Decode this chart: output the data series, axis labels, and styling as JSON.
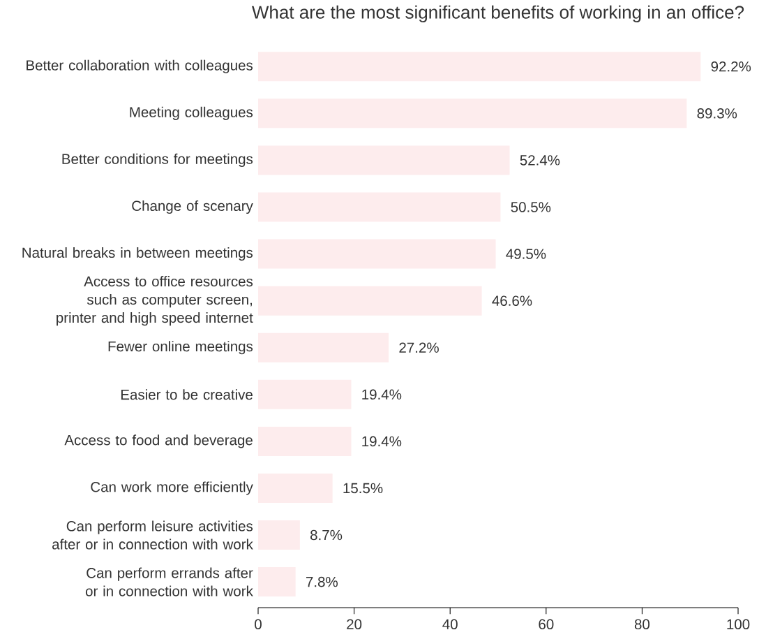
{
  "chart_data": {
    "type": "bar",
    "orientation": "horizontal",
    "title": "What are the most significant benefits of working in an office?",
    "categories": [
      "Better collaboration with colleagues",
      "Meeting colleagues",
      "Better conditions for meetings",
      "Change of scenary",
      "Natural breaks in between meetings",
      "Access to office resources such as computer screen, printer and high speed internet",
      "Fewer online meetings",
      "Easier to be creative",
      "Access to food and beverage",
      "Can work more efficiently",
      "Can perform leisure activities after or in connection with work",
      "Can perform errands after or in connection with work"
    ],
    "values": [
      92.2,
      89.3,
      52.4,
      50.5,
      49.5,
      46.6,
      27.2,
      19.4,
      19.4,
      15.5,
      8.7,
      7.8
    ],
    "value_labels": [
      "92.2%",
      "89.3%",
      "52.4%",
      "50.5%",
      "49.5%",
      "46.6%",
      "27.2%",
      "19.4%",
      "19.4%",
      "15.5%",
      "8.7%",
      "7.8%"
    ],
    "color": "#fdeced",
    "xlim": [
      0,
      100
    ],
    "xticks": [
      0,
      20,
      40,
      60,
      80,
      100
    ]
  }
}
